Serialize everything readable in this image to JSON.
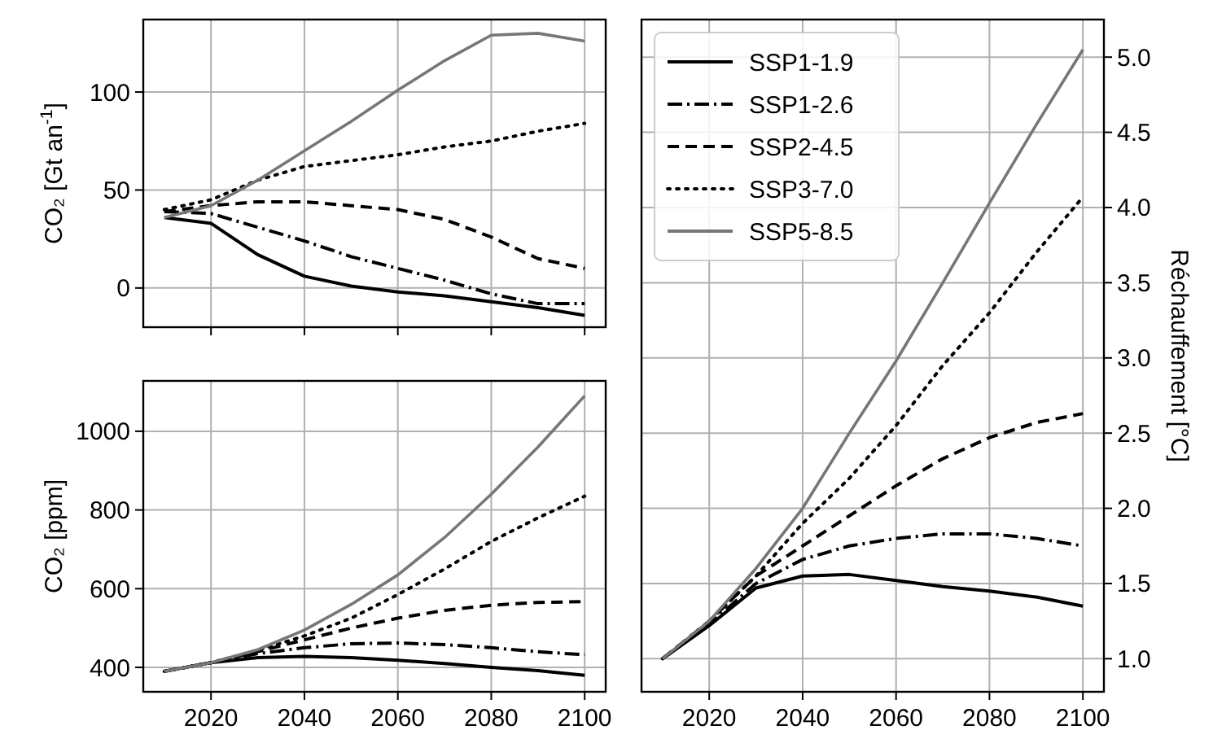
{
  "chart_data": [
    {
      "type": "line",
      "ylabel": "CO₂ [Gt an$^{-1}$]",
      "x": [
        2010,
        2020,
        2030,
        2040,
        2050,
        2060,
        2070,
        2080,
        2090,
        2100
      ],
      "xlim": [
        2005.5,
        2104.5
      ],
      "xticks": [
        2020,
        2040,
        2060,
        2080,
        2100
      ],
      "ylim": [
        -20,
        137
      ],
      "yticks": [
        0,
        50,
        100
      ],
      "tick_labels": "y",
      "grid": true,
      "series": [
        {
          "color": "#000000",
          "line_style": "solid",
          "values": [
            36,
            33,
            17,
            6,
            1,
            -2,
            -4,
            -7,
            -10,
            -14
          ]
        },
        {
          "color": "#000000",
          "line_style": "dashdot",
          "values": [
            39,
            38,
            31,
            24,
            16,
            10,
            4,
            -3,
            -8,
            -8
          ]
        },
        {
          "color": "#000000",
          "line_style": "dashed",
          "values": [
            39,
            42,
            44,
            44,
            42,
            40,
            35,
            26,
            15,
            10
          ]
        },
        {
          "color": "#000000",
          "line_style": "dotted",
          "values": [
            40,
            45,
            55,
            62,
            65,
            68,
            72,
            75,
            80,
            84
          ]
        },
        {
          "color": "#777777",
          "line_style": "solid",
          "values": [
            36,
            42,
            55,
            70,
            85,
            101,
            116,
            129,
            130,
            126
          ]
        }
      ]
    },
    {
      "type": "line",
      "ylabel": "CO₂ [ppm]",
      "x": [
        2010,
        2020,
        2030,
        2040,
        2050,
        2060,
        2070,
        2080,
        2090,
        2100
      ],
      "xlim": [
        2005.5,
        2104.5
      ],
      "xticks": [
        2020,
        2040,
        2060,
        2080,
        2100
      ],
      "ylim": [
        338,
        1128
      ],
      "yticks": [
        400,
        600,
        800,
        1000
      ],
      "grid": true,
      "series": [
        {
          "color": "#000000",
          "line_style": "solid",
          "values": [
            390,
            412,
            425,
            428,
            425,
            418,
            410,
            400,
            392,
            380
          ]
        },
        {
          "color": "#000000",
          "line_style": "dashdot",
          "values": [
            390,
            412,
            435,
            450,
            460,
            462,
            458,
            450,
            440,
            432
          ]
        },
        {
          "color": "#000000",
          "line_style": "dashed",
          "values": [
            390,
            412,
            440,
            470,
            500,
            525,
            545,
            558,
            565,
            567
          ]
        },
        {
          "color": "#000000",
          "line_style": "dotted",
          "values": [
            390,
            412,
            443,
            480,
            525,
            585,
            650,
            720,
            780,
            835
          ]
        },
        {
          "color": "#777777",
          "line_style": "solid",
          "values": [
            390,
            412,
            445,
            495,
            560,
            635,
            730,
            840,
            960,
            1090
          ]
        }
      ]
    },
    {
      "type": "line",
      "y2label": "Réchauffement [°C]",
      "x": [
        2010,
        2020,
        2030,
        2040,
        2050,
        2060,
        2070,
        2080,
        2090,
        2100
      ],
      "xlim": [
        2005.5,
        2104.5
      ],
      "xticks": [
        2020,
        2040,
        2060,
        2080,
        2100
      ],
      "y2lim": [
        0.78,
        5.25
      ],
      "y2ticks": [
        {
          "value": 1,
          "label": "1.0"
        },
        {
          "value": 1.5,
          "label": "1.5"
        },
        {
          "value": 2,
          "label": "2.0"
        },
        {
          "value": 2.5,
          "label": "2.5"
        },
        {
          "value": 3,
          "label": "3.0"
        },
        {
          "value": 3.5,
          "label": "3.5"
        },
        {
          "value": 4,
          "label": "4.0"
        },
        {
          "value": 4.5,
          "label": "4.5"
        },
        {
          "value": 5,
          "label": "5.0"
        }
      ],
      "grid": true,
      "legend": "top left",
      "series": [
        {
          "name": "SSP1-1.9",
          "color": "#000000",
          "line_style": "solid",
          "axis": "y2",
          "values": [
            1.0,
            1.22,
            1.47,
            1.55,
            1.56,
            1.52,
            1.48,
            1.45,
            1.41,
            1.35
          ]
        },
        {
          "name": "SSP1-2.6",
          "color": "#000000",
          "line_style": "dashdot",
          "axis": "y2",
          "values": [
            1.0,
            1.23,
            1.5,
            1.66,
            1.75,
            1.8,
            1.83,
            1.83,
            1.8,
            1.75
          ]
        },
        {
          "name": "SSP2-4.5",
          "color": "#000000",
          "line_style": "dashed",
          "axis": "y2",
          "values": [
            1.0,
            1.25,
            1.55,
            1.75,
            1.95,
            2.15,
            2.33,
            2.47,
            2.57,
            2.63
          ]
        },
        {
          "name": "SSP3-7.0",
          "color": "#000000",
          "line_style": "dotted",
          "axis": "y2",
          "values": [
            1.0,
            1.25,
            1.55,
            1.9,
            2.2,
            2.55,
            2.95,
            3.3,
            3.7,
            4.07
          ]
        },
        {
          "name": "SSP5-8.5",
          "color": "#777777",
          "line_style": "solid",
          "axis": "y2",
          "values": [
            1.0,
            1.25,
            1.6,
            2.0,
            2.5,
            2.98,
            3.5,
            4.03,
            4.55,
            5.05
          ]
        }
      ]
    }
  ]
}
